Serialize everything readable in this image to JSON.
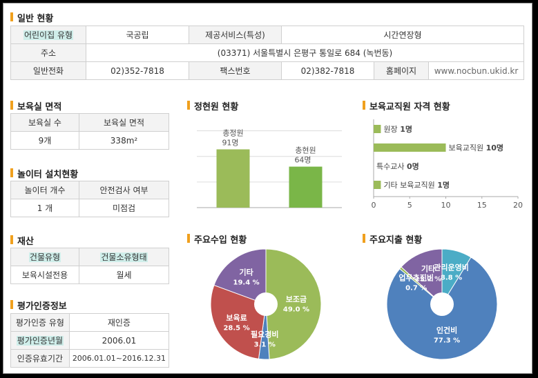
{
  "general": {
    "title": "일반 현황",
    "type_label": "어린이집 유형",
    "type_value": "국공립",
    "service_label": "제공서비스(특성)",
    "service_value": "시간연장형",
    "address_label": "주소",
    "address_value": "(03371) 서울특별시 은평구 통일로 684 (녹번동)",
    "phone_label": "일반전화",
    "phone_value": "02)352-7818",
    "fax_label": "팩스번호",
    "fax_value": "02)382-7818",
    "homepage_label": "홈페이지",
    "homepage_value": "www.nocbun.ukid.kr"
  },
  "rooms": {
    "title": "보육실 면적",
    "h1": "보육실 수",
    "h2": "보육실 면적",
    "v1": "9개",
    "v2": "338m²"
  },
  "playground": {
    "title": "놀이터 설치현황",
    "h1": "놀이터 개수",
    "h2": "안전검사 여부",
    "v1": "1 개",
    "v2": "미점검"
  },
  "property": {
    "title": "재산",
    "h1": "건물유형",
    "h2": "건물소유형태",
    "v1": "보육시설전용",
    "v2": "월세"
  },
  "accreditation": {
    "title": "평가인증정보",
    "r1_label": "평가인증 유형",
    "r1_value": "재인증",
    "r2_label": "평가인증년월",
    "r2_value": "2006.01",
    "r3_label": "인증유효기간",
    "r3_value": "2006.01.01~2016.12.31"
  },
  "charts": {
    "capacity": {
      "title": "정현원 현황",
      "chart_data": {
        "type": "bar",
        "categories": [
          "총정원",
          "총현원"
        ],
        "values": [
          91,
          64
        ],
        "value_labels": [
          "91명",
          "64명"
        ],
        "colors": [
          "#9bbb59",
          "#7ab648"
        ],
        "ylim": [
          0,
          140
        ],
        "grid": true
      }
    },
    "staff": {
      "title": "보육교직원 자격 현황",
      "chart_data": {
        "type": "bar",
        "orientation": "horizontal",
        "categories": [
          "원장",
          "보육교직원",
          "특수교사",
          "기타 보육교직원"
        ],
        "values": [
          1,
          10,
          0,
          1
        ],
        "value_labels": [
          "1명",
          "10명",
          "0명",
          "1명"
        ],
        "color": "#9bbb59",
        "xlim": [
          0,
          20
        ],
        "xticks": [
          "0",
          "5",
          "10",
          "15",
          "20"
        ]
      }
    },
    "income": {
      "title": "주요수입 현황",
      "chart_data": {
        "type": "pie",
        "labels": [
          "보조금",
          "필요경비",
          "보육료",
          "기타"
        ],
        "values": [
          49.0,
          3.1,
          28.5,
          19.4
        ],
        "value_labels": [
          "49.0 %",
          "3.1 %",
          "28.5 %",
          "19.4 %"
        ],
        "colors": [
          "#9bbb59",
          "#4f81bd",
          "#c0504d",
          "#8064a2"
        ]
      }
    },
    "expense": {
      "title": "주요지출 현황",
      "chart_data": {
        "type": "pie",
        "labels": [
          "관리운영비",
          "인건비",
          "업무추진비",
          "기타"
        ],
        "values": [
          8.8,
          77.3,
          0.7,
          13.2
        ],
        "value_labels": [
          "8.8 %",
          "77.3 %",
          "0.7 %",
          "13.2 %"
        ],
        "colors": [
          "#4bacc6",
          "#4f81bd",
          "#9bbb59",
          "#8064a2"
        ]
      }
    }
  }
}
